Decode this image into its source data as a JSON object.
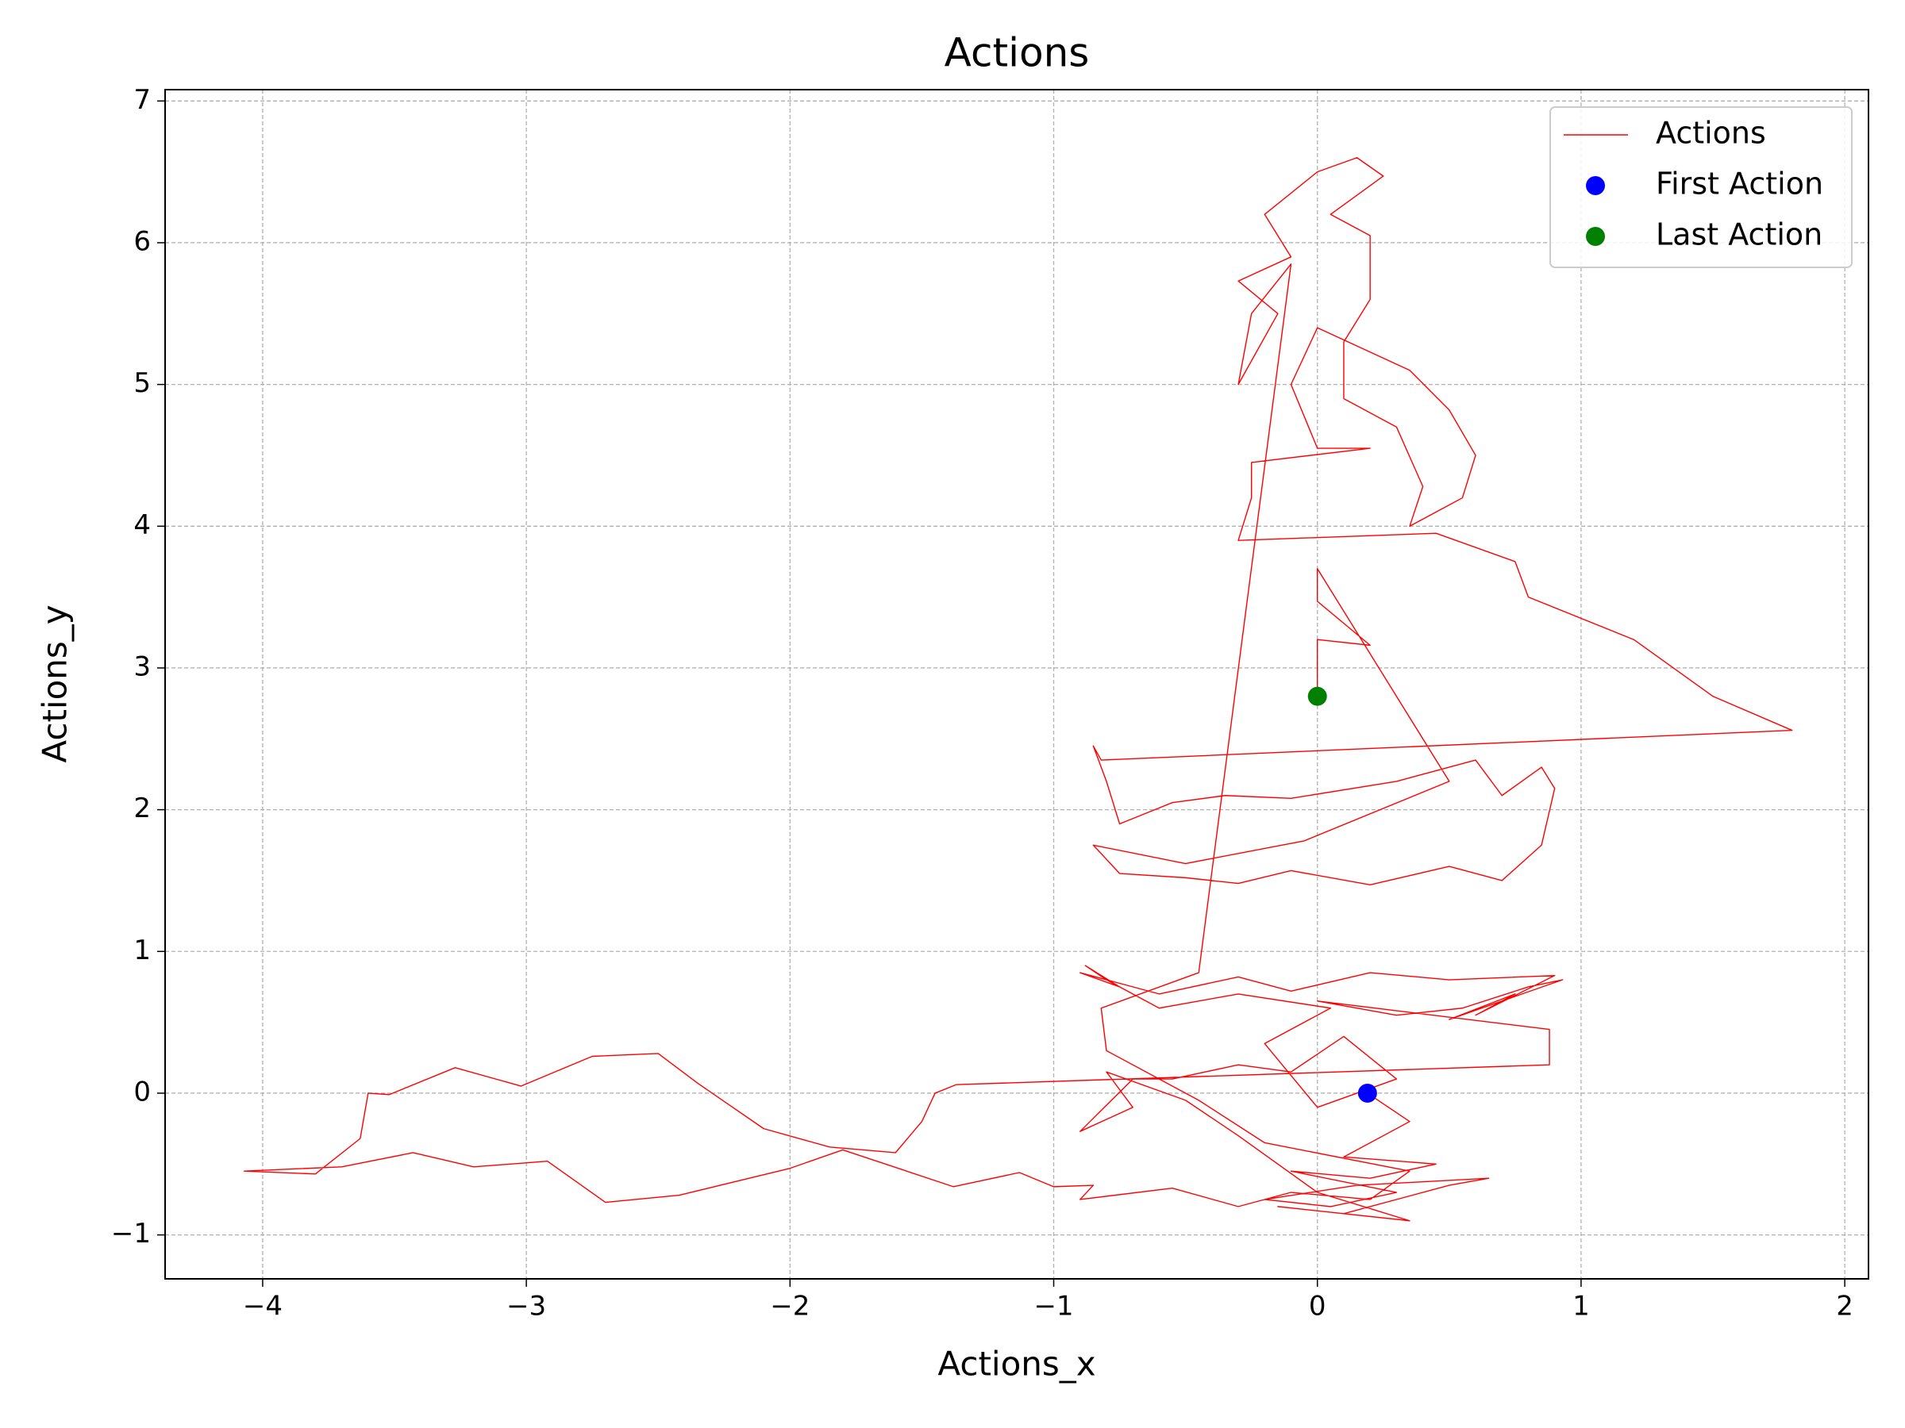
{
  "chart_data": {
    "type": "line",
    "title": "Actions",
    "xlabel": "Actions_x",
    "ylabel": "Actions_y",
    "xlim": [
      -4.37,
      2.09
    ],
    "ylim": [
      -1.31,
      7.08
    ],
    "xticks": [
      {
        "value": -4,
        "label": "−4"
      },
      {
        "value": -3,
        "label": "−3"
      },
      {
        "value": -2,
        "label": "−2"
      },
      {
        "value": -1,
        "label": "−1"
      },
      0,
      1,
      2
    ],
    "yticks": [
      {
        "value": -1,
        "label": "−1"
      },
      0,
      1,
      2,
      3,
      4,
      5,
      6,
      7
    ],
    "grid": true,
    "legend": "upper right",
    "series": [
      {
        "name": "Actions",
        "type": "line",
        "color": "#ff0000",
        "x": [
          0.19,
          0.35,
          0.1,
          0.45,
          0.2,
          -0.1,
          0.3,
          0.05,
          -0.2,
          0.15,
          0.65,
          0.5,
          0.1,
          -0.15,
          0.35,
          0.0,
          -0.3,
          -0.5,
          -0.8,
          -0.7,
          -0.9,
          -0.7,
          -0.55,
          -0.3,
          -0.1,
          0.1,
          0.3,
          0.0,
          -0.2,
          0.05,
          -0.3,
          -0.6,
          -0.8,
          -0.88,
          -0.75,
          -0.9,
          -0.6,
          -0.3,
          -0.1,
          0.2,
          0.5,
          0.9,
          0.6,
          0.75,
          0.5,
          0.93,
          0.8,
          0.55,
          0.3,
          0.0,
          0.88,
          0.88,
          -1.37,
          -1.45,
          -1.5,
          -1.6,
          -1.85,
          -2.1,
          -2.35,
          -2.5,
          -2.75,
          -3.02,
          -3.27,
          -3.52,
          -3.6,
          -3.63,
          -3.8,
          -4.07,
          -3.7,
          -3.43,
          -3.2,
          -2.92,
          -2.7,
          -2.42,
          -2.0,
          -1.8,
          -1.38,
          -1.13,
          -1.0,
          -0.85,
          -0.9,
          -0.55,
          -0.3,
          -0.1,
          0.2,
          0.35,
          -0.2,
          -0.45,
          -0.8,
          -0.82,
          -0.45,
          -0.1,
          -0.25,
          -0.3,
          -0.15,
          -0.3,
          -0.1,
          -0.2,
          0.0,
          0.15,
          0.25,
          0.05,
          0.2,
          0.2,
          0.1,
          0.1,
          0.3,
          0.4,
          0.35,
          0.55,
          0.6,
          0.5,
          0.35,
          0.0,
          -0.1,
          0.0,
          0.2,
          -0.25,
          -0.25,
          -0.3,
          0.45,
          0.75,
          0.8,
          1.2,
          1.5,
          1.8,
          -0.82,
          -0.85,
          -0.8,
          -0.75,
          -0.55,
          -0.35,
          -0.1,
          0.3,
          0.6,
          0.7,
          0.85,
          0.9,
          0.85,
          0.7,
          0.5,
          0.2,
          -0.1,
          -0.3,
          -0.5,
          -0.75,
          -0.85,
          -0.5,
          -0.05,
          0.5,
          0.0,
          0.0,
          0.2,
          0.0,
          0.0
        ],
        "values": [
          0.0,
          -0.2,
          -0.45,
          -0.5,
          -0.6,
          -0.55,
          -0.7,
          -0.8,
          -0.75,
          -0.65,
          -0.6,
          -0.65,
          -0.85,
          -0.8,
          -0.9,
          -0.7,
          -0.3,
          -0.05,
          0.15,
          -0.1,
          -0.27,
          0.1,
          0.1,
          0.2,
          0.15,
          0.4,
          0.1,
          -0.1,
          0.35,
          0.6,
          0.7,
          0.6,
          0.8,
          0.9,
          0.75,
          0.85,
          0.7,
          0.82,
          0.72,
          0.85,
          0.8,
          0.83,
          0.55,
          0.7,
          0.52,
          0.8,
          0.75,
          0.6,
          0.55,
          0.65,
          0.45,
          0.2,
          0.06,
          0.0,
          -0.2,
          -0.42,
          -0.38,
          -0.25,
          0.07,
          0.28,
          0.26,
          0.05,
          0.18,
          -0.01,
          0.0,
          -0.32,
          -0.57,
          -0.55,
          -0.52,
          -0.42,
          -0.52,
          -0.48,
          -0.77,
          -0.72,
          -0.53,
          -0.4,
          -0.66,
          -0.56,
          -0.66,
          -0.65,
          -0.75,
          -0.67,
          -0.8,
          -0.7,
          -0.75,
          -0.55,
          -0.35,
          -0.05,
          0.3,
          0.6,
          0.85,
          5.85,
          5.5,
          5.0,
          5.5,
          5.73,
          5.9,
          6.2,
          6.5,
          6.6,
          6.47,
          6.2,
          6.05,
          5.6,
          5.3,
          4.9,
          4.7,
          4.28,
          4.0,
          4.2,
          4.5,
          4.82,
          5.1,
          5.4,
          5.0,
          4.55,
          4.55,
          4.45,
          4.2,
          3.9,
          3.95,
          3.75,
          3.5,
          3.2,
          2.8,
          2.56,
          2.35,
          2.45,
          2.2,
          1.9,
          2.05,
          2.1,
          2.08,
          2.2,
          2.35,
          2.1,
          2.3,
          2.15,
          1.75,
          1.5,
          1.6,
          1.47,
          1.57,
          1.48,
          1.52,
          1.55,
          1.75,
          1.62,
          1.78,
          2.2,
          3.7,
          3.47,
          3.16,
          3.2,
          2.8
        ]
      },
      {
        "name": "First Action",
        "type": "scatter",
        "color": "#0000ff",
        "x": [
          0.19
        ],
        "values": [
          0.0
        ]
      },
      {
        "name": "Last Action",
        "type": "scatter",
        "color": "#008000",
        "x": [
          0.0
        ],
        "values": [
          2.8
        ]
      }
    ]
  }
}
